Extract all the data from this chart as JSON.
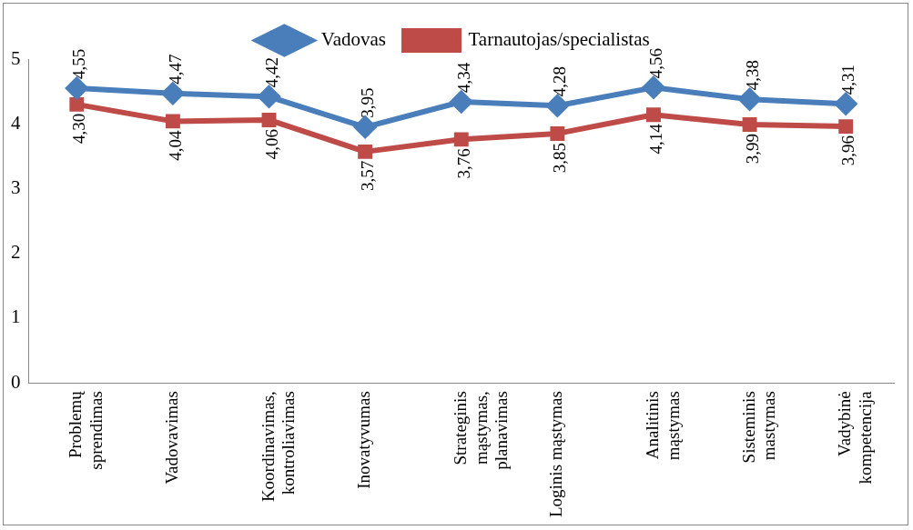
{
  "chart_data": {
    "type": "line",
    "categories": [
      "Problemų\nsprendimas",
      "Vadovavimas",
      "Koordinavimas,\nkontroliavimas",
      "Inovatyvumas",
      "Strateginis\nmąstymas,\nplanavimas",
      "Loginis mąstymas",
      "Analitinis\nmąstymas",
      "Sisteminis\nmastymas",
      "Vadybinė\nkompetencija"
    ],
    "series": [
      {
        "name": "Vadovas",
        "color": "#4a7ebb",
        "marker": "diamond",
        "values": [
          4.55,
          4.47,
          4.42,
          3.95,
          4.34,
          4.28,
          4.56,
          4.38,
          4.31
        ],
        "value_labels": [
          "4,55",
          "4,47",
          "4,42",
          "3,95",
          "4,34",
          "4,28",
          "4,56",
          "4,38",
          "4,31"
        ]
      },
      {
        "name": "Tarnautojas/specialistas",
        "color": "#be4b48",
        "marker": "square",
        "values": [
          4.3,
          4.04,
          4.06,
          3.57,
          3.76,
          3.85,
          4.14,
          3.99,
          3.96
        ],
        "value_labels": [
          "4,30",
          "4,04",
          "4,06",
          "3,57",
          "3,76",
          "3,85",
          "4,14",
          "3,99",
          "3,96"
        ]
      }
    ],
    "ylim": [
      0,
      5
    ],
    "yticks": [
      0,
      1,
      2,
      3,
      4,
      5
    ],
    "grid": false,
    "legend": "top"
  }
}
